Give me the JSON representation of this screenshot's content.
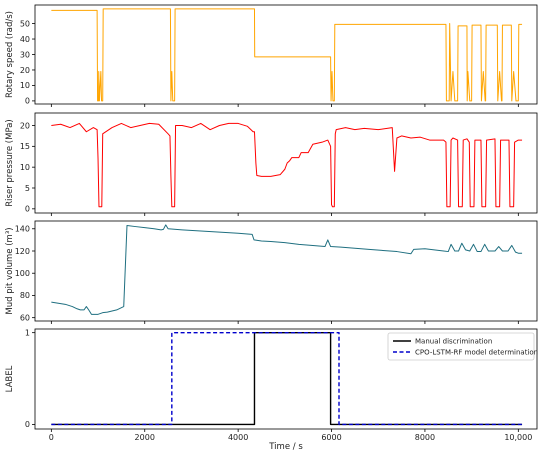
{
  "chart_data": [
    {
      "type": "line",
      "ylabel": "Rotary speed (rad/s)",
      "ylim": [
        -2,
        62
      ],
      "yticks": [
        0,
        10,
        20,
        30,
        40,
        50
      ],
      "xlim": [
        -350,
        10400
      ],
      "series": [
        {
          "color": "#ffa500",
          "points": [
            [
              0,
              58.5
            ],
            [
              980,
              58.5
            ],
            [
              990,
              0
            ],
            [
              1010,
              0
            ],
            [
              1015,
              19
            ],
            [
              1030,
              0
            ],
            [
              1060,
              19
            ],
            [
              1075,
              0
            ],
            [
              1100,
              0
            ],
            [
              1110,
              59.5
            ],
            [
              2550,
              59.5
            ],
            [
              2560,
              0
            ],
            [
              2580,
              19
            ],
            [
              2600,
              0
            ],
            [
              2640,
              0
            ],
            [
              2650,
              59.5
            ],
            [
              4350,
              59.5
            ],
            [
              4355,
              28.5
            ],
            [
              5980,
              28.5
            ],
            [
              5990,
              0
            ],
            [
              6010,
              19
            ],
            [
              6030,
              0
            ],
            [
              6060,
              0
            ],
            [
              6070,
              49.5
            ],
            [
              8450,
              49.5
            ],
            [
              8460,
              0
            ],
            [
              8520,
              0
            ],
            [
              8530,
              50
            ],
            [
              8560,
              0
            ],
            [
              8600,
              19
            ],
            [
              8640,
              0
            ],
            [
              8700,
              0
            ],
            [
              8710,
              48.5
            ],
            [
              8900,
              48.5
            ],
            [
              8905,
              0
            ],
            [
              8920,
              19
            ],
            [
              8960,
              0
            ],
            [
              9000,
              0
            ],
            [
              9010,
              49
            ],
            [
              9200,
              49
            ],
            [
              9210,
              0
            ],
            [
              9250,
              19
            ],
            [
              9290,
              0
            ],
            [
              9300,
              0
            ],
            [
              9310,
              49
            ],
            [
              9550,
              49
            ],
            [
              9560,
              0
            ],
            [
              9600,
              19
            ],
            [
              9640,
              0
            ],
            [
              9650,
              0
            ],
            [
              9660,
              49
            ],
            [
              9850,
              49
            ],
            [
              9860,
              0
            ],
            [
              9900,
              19
            ],
            [
              9950,
              0
            ],
            [
              10000,
              0
            ],
            [
              10010,
              49.5
            ],
            [
              10080,
              49.5
            ]
          ]
        }
      ]
    },
    {
      "type": "line",
      "ylabel": "Riser pressure (MPa)",
      "ylim": [
        -1,
        23
      ],
      "yticks": [
        0,
        5,
        10,
        15,
        20
      ],
      "xlim": [
        -350,
        10400
      ],
      "series": [
        {
          "color": "#ff0000",
          "points": [
            [
              0,
              20
            ],
            [
              200,
              20.3
            ],
            [
              400,
              19.5
            ],
            [
              600,
              20.5
            ],
            [
              750,
              18.5
            ],
            [
              900,
              19.5
            ],
            [
              980,
              19
            ],
            [
              1000,
              12
            ],
            [
              1020,
              0.5
            ],
            [
              1080,
              0.5
            ],
            [
              1100,
              18
            ],
            [
              1300,
              19.5
            ],
            [
              1500,
              20.5
            ],
            [
              1700,
              19.5
            ],
            [
              1900,
              20
            ],
            [
              2100,
              20.5
            ],
            [
              2300,
              20.3
            ],
            [
              2500,
              18
            ],
            [
              2540,
              17.5
            ],
            [
              2560,
              8
            ],
            [
              2580,
              0.5
            ],
            [
              2640,
              0.5
            ],
            [
              2660,
              20
            ],
            [
              2800,
              20
            ],
            [
              3000,
              19.5
            ],
            [
              3200,
              20.5
            ],
            [
              3400,
              19
            ],
            [
              3600,
              20
            ],
            [
              3800,
              20.5
            ],
            [
              4000,
              20.5
            ],
            [
              4200,
              19.8
            ],
            [
              4320,
              18.5
            ],
            [
              4350,
              18.5
            ],
            [
              4380,
              11
            ],
            [
              4400,
              8
            ],
            [
              4500,
              7.8
            ],
            [
              4700,
              7.8
            ],
            [
              4900,
              8.2
            ],
            [
              5000,
              9.5
            ],
            [
              5050,
              11
            ],
            [
              5100,
              11.5
            ],
            [
              5150,
              12.3
            ],
            [
              5300,
              12.3
            ],
            [
              5350,
              13.5
            ],
            [
              5500,
              13.5
            ],
            [
              5600,
              15.5
            ],
            [
              5800,
              16
            ],
            [
              5920,
              16.5
            ],
            [
              5980,
              15
            ],
            [
              6000,
              1
            ],
            [
              6020,
              0.5
            ],
            [
              6060,
              0.5
            ],
            [
              6080,
              18
            ],
            [
              6100,
              19
            ],
            [
              6300,
              19.5
            ],
            [
              6500,
              19
            ],
            [
              6700,
              19.3
            ],
            [
              7000,
              19
            ],
            [
              7300,
              19.5
            ],
            [
              7350,
              9
            ],
            [
              7400,
              17
            ],
            [
              7500,
              17.5
            ],
            [
              7700,
              17
            ],
            [
              7900,
              17.2
            ],
            [
              8100,
              16.5
            ],
            [
              8400,
              16.5
            ],
            [
              8450,
              16
            ],
            [
              8470,
              0.5
            ],
            [
              8540,
              0.5
            ],
            [
              8560,
              16.5
            ],
            [
              8600,
              17
            ],
            [
              8700,
              16.5
            ],
            [
              8720,
              0.5
            ],
            [
              8800,
              0.5
            ],
            [
              8820,
              16.5
            ],
            [
              8900,
              16.8
            ],
            [
              8950,
              16
            ],
            [
              8970,
              0.5
            ],
            [
              9050,
              0.5
            ],
            [
              9070,
              16.5
            ],
            [
              9200,
              16.5
            ],
            [
              9220,
              0.5
            ],
            [
              9300,
              0.5
            ],
            [
              9320,
              16.5
            ],
            [
              9500,
              16.8
            ],
            [
              9520,
              0.5
            ],
            [
              9600,
              0.5
            ],
            [
              9620,
              16.5
            ],
            [
              9800,
              16.5
            ],
            [
              9820,
              0.5
            ],
            [
              9900,
              0.5
            ],
            [
              9920,
              16
            ],
            [
              10000,
              16.5
            ],
            [
              10080,
              16.5
            ]
          ]
        }
      ]
    },
    {
      "type": "line",
      "ylabel": "Mud pit volume (m³)",
      "ylim": [
        57,
        147
      ],
      "yticks": [
        60,
        80,
        100,
        120,
        140
      ],
      "xlim": [
        -350,
        10400
      ],
      "series": [
        {
          "color": "#1f6f80",
          "points": [
            [
              0,
              74
            ],
            [
              150,
              73
            ],
            [
              300,
              72
            ],
            [
              450,
              70
            ],
            [
              550,
              68
            ],
            [
              620,
              67
            ],
            [
              700,
              67
            ],
            [
              750,
              70
            ],
            [
              800,
              67
            ],
            [
              860,
              63
            ],
            [
              1000,
              63
            ],
            [
              1100,
              64.5
            ],
            [
              1200,
              65
            ],
            [
              1300,
              66
            ],
            [
              1400,
              67
            ],
            [
              1550,
              70
            ],
            [
              1620,
              143
            ],
            [
              1800,
              142
            ],
            [
              2000,
              141
            ],
            [
              2200,
              140
            ],
            [
              2350,
              139
            ],
            [
              2400,
              139.5
            ],
            [
              2450,
              143.5
            ],
            [
              2500,
              140
            ],
            [
              2800,
              139
            ],
            [
              3200,
              138
            ],
            [
              3600,
              137
            ],
            [
              4000,
              136
            ],
            [
              4300,
              135
            ],
            [
              4340,
              130
            ],
            [
              4500,
              129
            ],
            [
              4700,
              128.5
            ],
            [
              5000,
              127.5
            ],
            [
              5300,
              126
            ],
            [
              5600,
              125
            ],
            [
              5860,
              124
            ],
            [
              5920,
              130
            ],
            [
              5980,
              124
            ],
            [
              6200,
              123.5
            ],
            [
              6500,
              122.5
            ],
            [
              6800,
              121.5
            ],
            [
              7100,
              120.5
            ],
            [
              7400,
              119.5
            ],
            [
              7700,
              117.5
            ],
            [
              7760,
              121.5
            ],
            [
              8000,
              122
            ],
            [
              8200,
              121
            ],
            [
              8400,
              120
            ],
            [
              8500,
              119.5
            ],
            [
              8560,
              126
            ],
            [
              8640,
              120
            ],
            [
              8720,
              120
            ],
            [
              8790,
              127
            ],
            [
              8870,
              121
            ],
            [
              8960,
              120
            ],
            [
              9040,
              126
            ],
            [
              9120,
              119.5
            ],
            [
              9200,
              119.5
            ],
            [
              9280,
              126
            ],
            [
              9360,
              120
            ],
            [
              9500,
              120
            ],
            [
              9580,
              124
            ],
            [
              9660,
              120
            ],
            [
              9780,
              120
            ],
            [
              9860,
              125
            ],
            [
              9940,
              119
            ],
            [
              10000,
              118
            ],
            [
              10080,
              118
            ]
          ]
        }
      ]
    },
    {
      "type": "line",
      "ylabel": "LABEL",
      "ylim": [
        -0.05,
        1.04
      ],
      "yticks": [
        0,
        1
      ],
      "xlim": [
        -350,
        10400
      ],
      "xlabel": "Time / s",
      "xticks": [
        0,
        2000,
        4000,
        6000,
        8000,
        10000
      ],
      "xtick_labels": [
        "0",
        "2000",
        "4000",
        "6000",
        "8000",
        "10,000"
      ],
      "legend_position": "top-right",
      "series": [
        {
          "name": "Manual discrimination",
          "color": "#000000",
          "dash": "solid",
          "points": [
            [
              0,
              0
            ],
            [
              4350,
              0
            ],
            [
              4350,
              1
            ],
            [
              5980,
              1
            ],
            [
              5980,
              0
            ],
            [
              10080,
              0
            ]
          ]
        },
        {
          "name": "CPO-LSTM-RF model determination",
          "color": "#0000cc",
          "dash": "dashed",
          "points": [
            [
              0,
              0
            ],
            [
              2580,
              0
            ],
            [
              2580,
              1
            ],
            [
              6160,
              1
            ],
            [
              6160,
              0
            ],
            [
              10080,
              0
            ]
          ]
        }
      ]
    }
  ]
}
